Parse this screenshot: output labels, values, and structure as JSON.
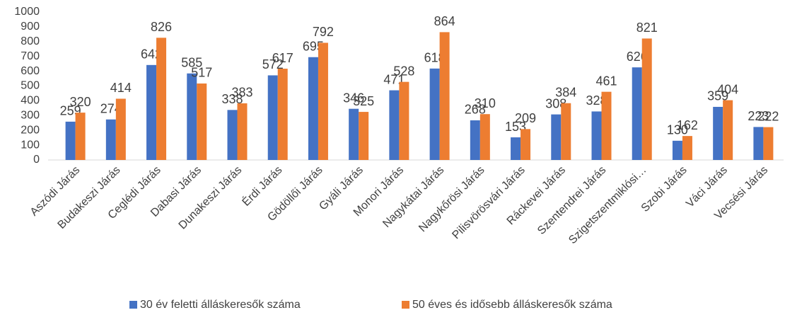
{
  "chart_data": {
    "type": "bar",
    "categories": [
      "Aszódi Járás",
      "Budakeszi Járás",
      "Ceglédi Járás",
      "Dabasi Járás",
      "Dunakeszi Járás",
      "Érdi Járás",
      "Gödöllői Járás",
      "Gyáli Járás",
      "Monori Járás",
      "Nagykátai Járás",
      "Nagykőrösi Járás",
      "Pilisvörösvári Járás",
      "Ráckevei Járás",
      "Szentendrei Járás",
      "Szigetszentmiklósi…",
      "Szobi Járás",
      "Váci Járás",
      "Vecsési Járás"
    ],
    "series": [
      {
        "name": "30 év feletti álláskeresők száma",
        "color": "#4472c4",
        "values": [
          259,
          274,
          642,
          585,
          338,
          572,
          695,
          346,
          471,
          618,
          268,
          153,
          308,
          328,
          626,
          130,
          359,
          223
        ]
      },
      {
        "name": "50 éves és idősebb álláskeresők száma",
        "color": "#ed7d31",
        "values": [
          320,
          414,
          826,
          517,
          383,
          617,
          792,
          325,
          528,
          864,
          310,
          209,
          384,
          461,
          821,
          162,
          404,
          222
        ]
      }
    ],
    "ylim": [
      0,
      1000
    ],
    "yticks": [
      0,
      100,
      200,
      300,
      400,
      500,
      600,
      700,
      800,
      900,
      1000
    ],
    "grid": false,
    "legend": "bottom"
  }
}
